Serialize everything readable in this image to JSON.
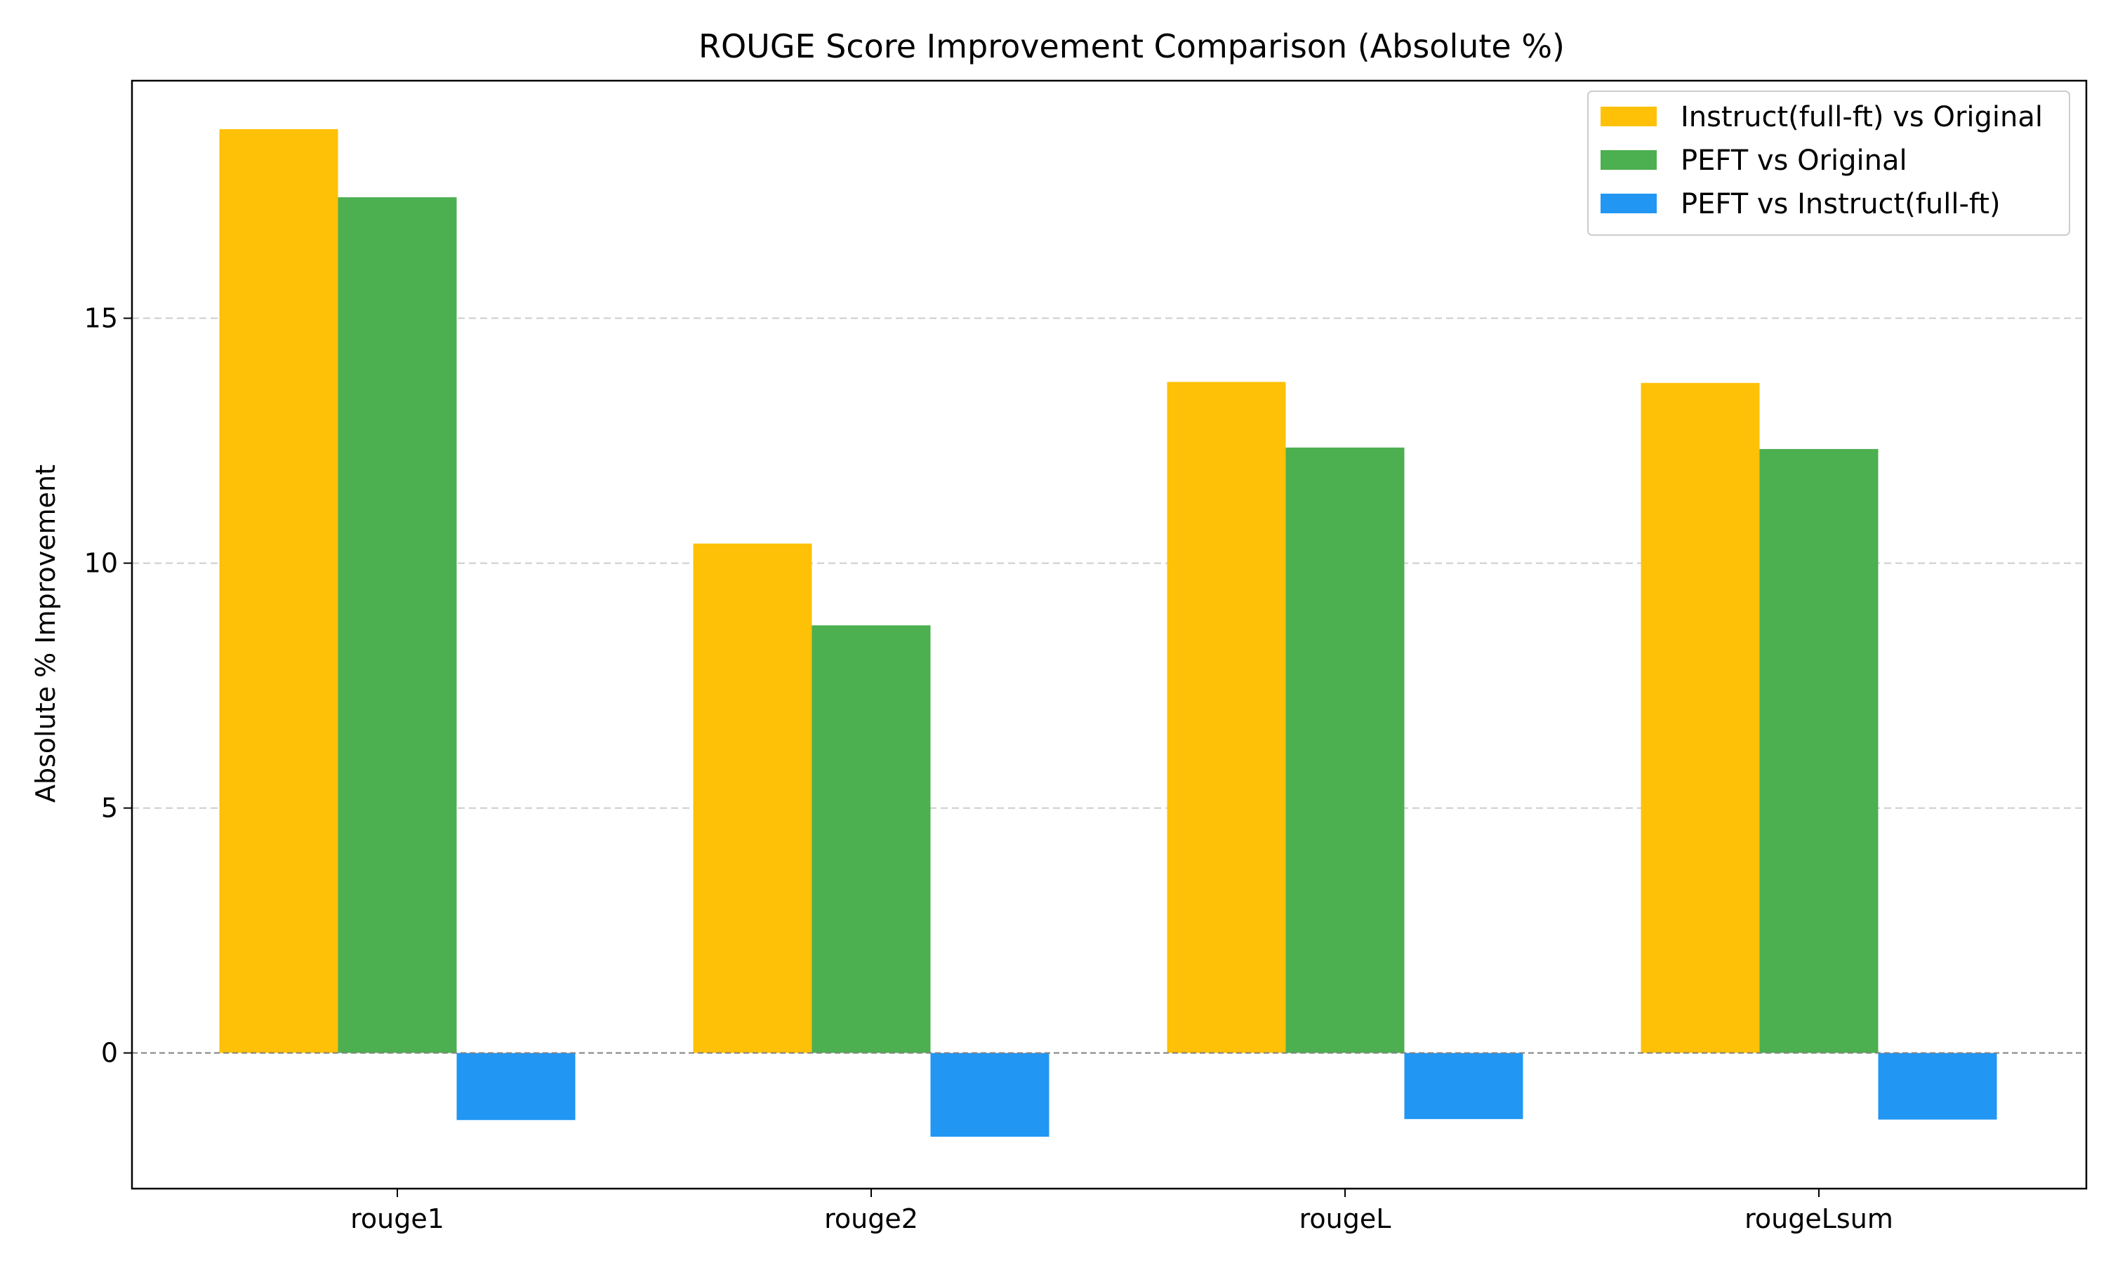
{
  "chart_data": {
    "type": "bar",
    "title": "ROUGE Score Improvement Comparison (Absolute %)",
    "xlabel": "",
    "ylabel": "Absolute % Improvement",
    "categories": [
      "rouge1",
      "rouge2",
      "rougeL",
      "rougeLsum"
    ],
    "series": [
      {
        "name": "Instruct(full-ft) vs Original",
        "color": "#FFC107",
        "values": [
          18.86,
          10.4,
          13.7,
          13.68
        ]
      },
      {
        "name": "PEFT vs Original",
        "color": "#4CAF50",
        "values": [
          17.47,
          8.73,
          12.36,
          12.33
        ]
      },
      {
        "name": "PEFT vs Instruct(full-ft)",
        "color": "#2196F3",
        "values": [
          -1.37,
          -1.71,
          -1.35,
          -1.36
        ]
      }
    ],
    "ylim": [
      -2.77,
      19.85
    ],
    "yticks": [
      0,
      5,
      10,
      15
    ],
    "grid": {
      "axis": "y",
      "style": "dashed"
    },
    "zero_line": true,
    "legend": "top-right"
  }
}
